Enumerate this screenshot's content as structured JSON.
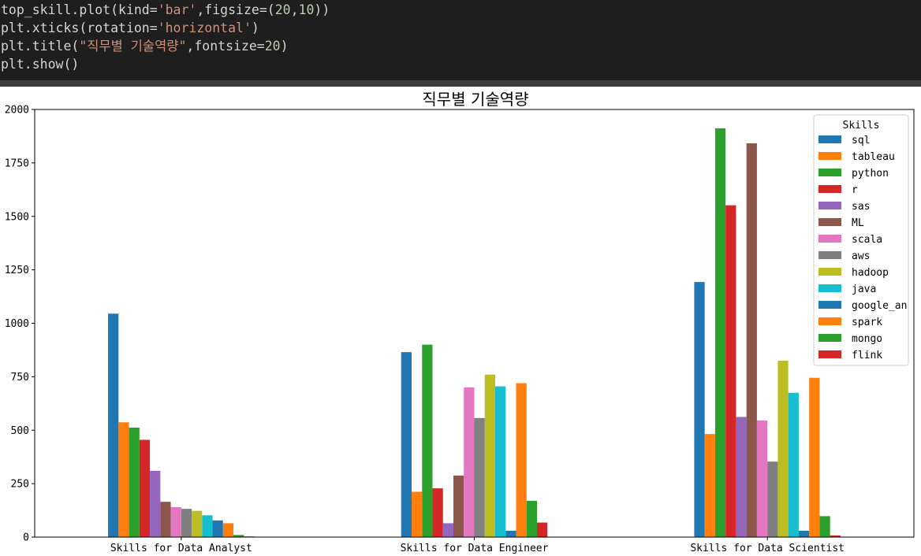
{
  "code": {
    "line1": {
      "a": "top_skill.plot(kind=",
      "b": "'bar'",
      "c": ",figsize=(",
      "d": "20",
      "e": ",",
      "f": "10",
      "g": "))"
    },
    "line2": {
      "a": "plt.xticks(rotation=",
      "b": "'horizontal'",
      "c": ")"
    },
    "line3": {
      "a": "plt.title(",
      "b": "\"직무별 기술역량\"",
      "c": ",fontsize=",
      "d": "20",
      "e": ")"
    },
    "line4": {
      "a": "plt.show()"
    }
  },
  "chart_data": {
    "type": "bar",
    "title": "직무별 기술역량",
    "categories": [
      "Skills for Data Analyst",
      "Skills for Data Engineer",
      "Skills for Data Scientist"
    ],
    "ylim": [
      0,
      2000
    ],
    "yticks": [
      0,
      250,
      500,
      750,
      1000,
      1250,
      1500,
      1750,
      2000
    ],
    "legend_title": "Skills",
    "legend_position": "top-right",
    "series": [
      {
        "name": "sql",
        "color": "#1f77b4",
        "values": [
          1045,
          865,
          1193
        ]
      },
      {
        "name": "tableau",
        "color": "#ff7f0e",
        "values": [
          537,
          212,
          482
        ]
      },
      {
        "name": "python",
        "color": "#2ca02c",
        "values": [
          512,
          900,
          1912
        ]
      },
      {
        "name": "r",
        "color": "#d62728",
        "values": [
          455,
          228,
          1552
        ]
      },
      {
        "name": "sas",
        "color": "#9467bd",
        "values": [
          310,
          65,
          562
        ]
      },
      {
        "name": "ML",
        "color": "#8c564b",
        "values": [
          165,
          288,
          1842
        ]
      },
      {
        "name": "scala",
        "color": "#e377c2",
        "values": [
          140,
          700,
          545
        ]
      },
      {
        "name": "aws",
        "color": "#7f7f7f",
        "values": [
          132,
          557,
          353
        ]
      },
      {
        "name": "hadoop",
        "color": "#bcbd22",
        "values": [
          123,
          760,
          825
        ]
      },
      {
        "name": "java",
        "color": "#17becf",
        "values": [
          102,
          705,
          675
        ]
      },
      {
        "name": "google_an",
        "color": "#1f77b4",
        "values": [
          78,
          30,
          30
        ]
      },
      {
        "name": "spark",
        "color": "#ff7f0e",
        "values": [
          65,
          720,
          745
        ]
      },
      {
        "name": "mongo",
        "color": "#2ca02c",
        "values": [
          10,
          170,
          98
        ]
      },
      {
        "name": "flink",
        "color": "#d62728",
        "values": [
          3,
          68,
          8
        ]
      }
    ]
  }
}
